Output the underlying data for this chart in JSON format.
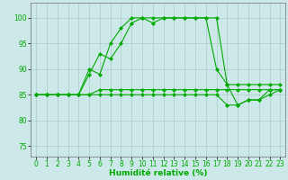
{
  "xlabel": "Humidité relative (%)",
  "background_color": "#cce8e8",
  "grid_color": "#aacccc",
  "line_color": "#00aa00",
  "xlim": [
    -0.5,
    23.5
  ],
  "ylim": [
    73,
    103
  ],
  "yticks": [
    75,
    80,
    85,
    90,
    95,
    100
  ],
  "xticks": [
    0,
    1,
    2,
    3,
    4,
    5,
    6,
    7,
    8,
    9,
    10,
    11,
    12,
    13,
    14,
    15,
    16,
    17,
    18,
    19,
    20,
    21,
    22,
    23
  ],
  "line1_x": [
    0,
    1,
    2,
    3,
    4,
    5,
    6,
    7,
    8,
    9,
    10,
    11,
    12,
    13,
    14,
    15,
    16,
    17,
    18,
    19,
    20,
    21,
    22,
    23
  ],
  "line1_y": [
    85,
    85,
    85,
    85,
    85,
    89,
    93,
    92,
    95,
    99,
    100,
    99,
    100,
    100,
    100,
    100,
    100,
    90,
    87,
    83,
    84,
    84,
    86,
    86
  ],
  "line2_x": [
    0,
    1,
    2,
    3,
    4,
    5,
    6,
    7,
    8,
    9,
    10,
    11,
    12,
    13,
    14,
    15,
    16,
    17,
    18,
    19,
    20,
    21,
    22,
    23
  ],
  "line2_y": [
    85,
    85,
    85,
    85,
    85,
    90,
    89,
    95,
    98,
    100,
    100,
    100,
    100,
    100,
    100,
    100,
    100,
    100,
    87,
    87,
    87,
    87,
    87,
    87
  ],
  "line3_x": [
    0,
    1,
    2,
    3,
    4,
    5,
    6,
    7,
    8,
    9,
    10,
    11,
    12,
    13,
    14,
    15,
    16,
    17,
    18,
    19,
    20,
    21,
    22,
    23
  ],
  "line3_y": [
    85,
    85,
    85,
    85,
    85,
    85,
    86,
    86,
    86,
    86,
    86,
    86,
    86,
    86,
    86,
    86,
    86,
    86,
    86,
    86,
    86,
    86,
    86,
    86
  ],
  "line4_x": [
    0,
    1,
    2,
    3,
    4,
    5,
    6,
    7,
    8,
    9,
    10,
    11,
    12,
    13,
    14,
    15,
    16,
    17,
    18,
    19,
    20,
    21,
    22,
    23
  ],
  "line4_y": [
    85,
    85,
    85,
    85,
    85,
    85,
    85,
    85,
    85,
    85,
    85,
    85,
    85,
    85,
    85,
    85,
    85,
    85,
    83,
    83,
    84,
    84,
    85,
    86
  ],
  "marker": "D",
  "markersize": 2.0,
  "linewidth": 0.8,
  "xlabel_fontsize": 6.5,
  "tick_fontsize": 5.5
}
